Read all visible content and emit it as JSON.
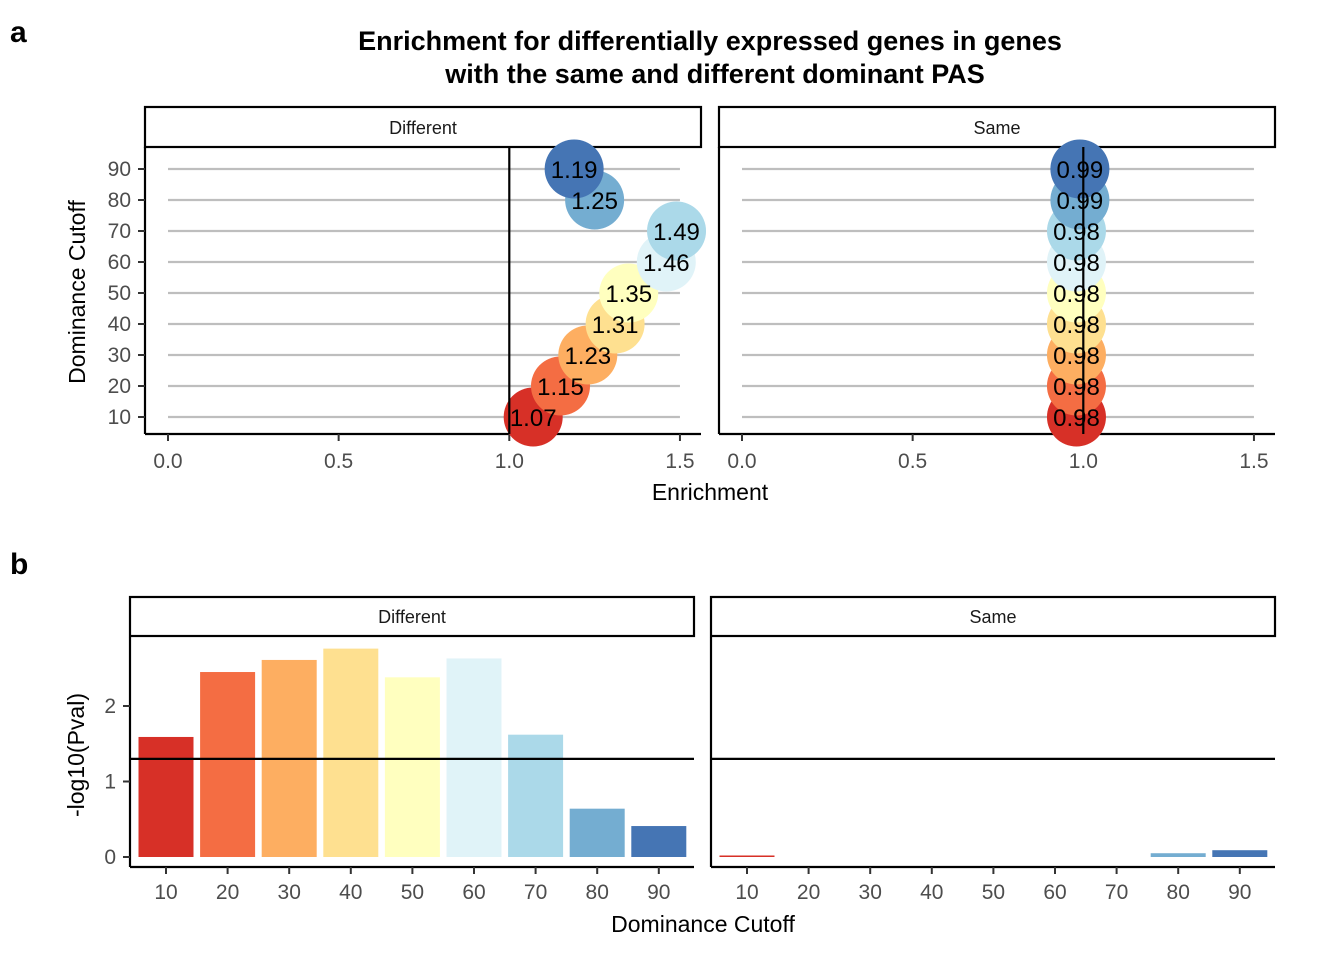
{
  "figure": {
    "panel_a_letter": "a",
    "panel_b_letter": "b"
  },
  "chart_data": [
    {
      "type": "scatter",
      "title_line1": "Enrichment for differentially expressed genes in genes",
      "title_line2": "with the same and different dominant PAS",
      "xlabel": "Enrichment",
      "ylabel": "Dominance Cutoff",
      "xlim": [
        0,
        1.5
      ],
      "xticks": [
        "0.0",
        "0.5",
        "1.0",
        "1.5"
      ],
      "ylim": [
        10,
        90
      ],
      "yticks": [
        "10",
        "20",
        "30",
        "40",
        "50",
        "60",
        "70",
        "80",
        "90"
      ],
      "reference_line_x": 1.0,
      "grid": "horizontal lines at each cutoff",
      "facets": [
        {
          "name": "Different",
          "points": [
            {
              "cutoff": 10,
              "enrichment": 1.07,
              "label": "1.07"
            },
            {
              "cutoff": 20,
              "enrichment": 1.15,
              "label": "1.15"
            },
            {
              "cutoff": 30,
              "enrichment": 1.23,
              "label": "1.23"
            },
            {
              "cutoff": 40,
              "enrichment": 1.31,
              "label": "1.31"
            },
            {
              "cutoff": 50,
              "enrichment": 1.35,
              "label": "1.35"
            },
            {
              "cutoff": 60,
              "enrichment": 1.46,
              "label": "1.46"
            },
            {
              "cutoff": 70,
              "enrichment": 1.49,
              "label": "1.49"
            },
            {
              "cutoff": 80,
              "enrichment": 1.25,
              "label": "1.25"
            },
            {
              "cutoff": 90,
              "enrichment": 1.19,
              "label": "1.19"
            }
          ]
        },
        {
          "name": "Same",
          "points": [
            {
              "cutoff": 10,
              "enrichment": 0.98,
              "label": "0.98"
            },
            {
              "cutoff": 20,
              "enrichment": 0.98,
              "label": "0.98"
            },
            {
              "cutoff": 30,
              "enrichment": 0.98,
              "label": "0.98"
            },
            {
              "cutoff": 40,
              "enrichment": 0.98,
              "label": "0.98"
            },
            {
              "cutoff": 50,
              "enrichment": 0.98,
              "label": "0.98"
            },
            {
              "cutoff": 60,
              "enrichment": 0.98,
              "label": "0.98"
            },
            {
              "cutoff": 70,
              "enrichment": 0.98,
              "label": "0.98"
            },
            {
              "cutoff": 80,
              "enrichment": 0.99,
              "label": "0.99"
            },
            {
              "cutoff": 90,
              "enrichment": 0.99,
              "label": "0.99"
            }
          ]
        }
      ]
    },
    {
      "type": "bar",
      "xlabel": "Dominance Cutoff",
      "ylabel": "-log10(Pval)",
      "categories": [
        "10",
        "20",
        "30",
        "40",
        "50",
        "60",
        "70",
        "80",
        "90"
      ],
      "ylim": [
        0,
        2.85
      ],
      "yticks": [
        "0",
        "1",
        "2"
      ],
      "reference_line_y": 1.3,
      "facets": [
        {
          "name": "Different",
          "values": [
            1.59,
            2.45,
            2.61,
            2.76,
            2.38,
            2.63,
            1.62,
            0.64,
            0.41
          ]
        },
        {
          "name": "Same",
          "values": [
            0.02,
            0.0,
            0.0,
            0.0,
            0.0,
            0.0,
            0.0,
            0.05,
            0.09
          ]
        }
      ]
    }
  ],
  "colors": {
    "cutoff_palette": [
      "#d73027",
      "#f46d43",
      "#fdae61",
      "#fee090",
      "#ffffbf",
      "#e0f3f8",
      "#abd9e9",
      "#74add1",
      "#4575b4"
    ],
    "axis": "#000000",
    "grid": "#bebebe",
    "tick_text": "#4d4d4d"
  }
}
